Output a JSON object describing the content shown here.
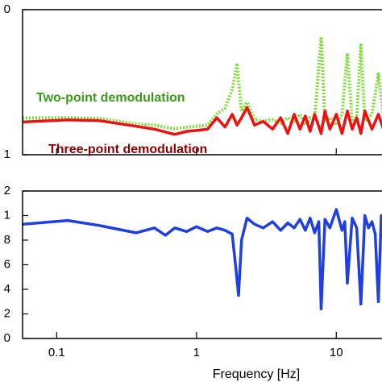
{
  "chart_data": [
    {
      "type": "line",
      "xlog": true,
      "ylog": true,
      "xlim": [
        0.057,
        23
      ],
      "xticks": [
        0.1,
        1,
        10
      ],
      "ylim": [
        1,
        10
      ],
      "yticks": [
        {
          "value": 10,
          "label": "0"
        },
        1
      ],
      "annotations": [
        {
          "text": "Two-point demodulation",
          "color": "#3a9a1a"
        },
        {
          "text": "Three-point demodulation",
          "color": "#8b0000"
        }
      ],
      "x": [
        0.057,
        0.12,
        0.2,
        0.37,
        0.5,
        0.7,
        0.85,
        1,
        1.2,
        1.4,
        1.6,
        1.8,
        1.95,
        2.1,
        2.3,
        2.6,
        3,
        3.5,
        4,
        4.5,
        5,
        5.5,
        6,
        6.5,
        7,
        7.8,
        8.3,
        9,
        10,
        11,
        12,
        13,
        14,
        15,
        16,
        18,
        20,
        22,
        23
      ],
      "series": [
        {
          "color": "#7ddc3a",
          "style": "dotted",
          "values": [
            1.79,
            1.8,
            1.78,
            1.63,
            1.6,
            1.51,
            1.55,
            1.57,
            1.6,
            1.91,
            2.1,
            2.81,
            4.15,
            2.0,
            2.3,
            1.75,
            1.7,
            1.75,
            1.65,
            1.8,
            1.7,
            1.9,
            1.6,
            1.8,
            1.75,
            6.5,
            1.7,
            1.8,
            1.6,
            1.9,
            5.0,
            1.7,
            1.8,
            5.7,
            1.7,
            1.9,
            3.6,
            1.7,
            1.8
          ]
        },
        {
          "color": "#ee1111",
          "style": "solid",
          "values": [
            1.68,
            1.74,
            1.72,
            1.57,
            1.5,
            1.38,
            1.45,
            1.47,
            1.5,
            1.8,
            1.55,
            1.9,
            1.6,
            1.8,
            2.12,
            1.6,
            1.7,
            1.5,
            1.8,
            1.4,
            1.9,
            1.5,
            1.85,
            1.45,
            1.9,
            1.4,
            2.0,
            1.5,
            1.9,
            1.4,
            2.0,
            1.5,
            1.8,
            1.4,
            2.0,
            1.5,
            1.9,
            1.45,
            1.8
          ]
        }
      ]
    },
    {
      "type": "line",
      "xlog": true,
      "xlim": [
        0.057,
        23
      ],
      "xticks": [
        0.1,
        1,
        10
      ],
      "xlabel": "Frequency [Hz]",
      "ylim": [
        0,
        1.2
      ],
      "yticks": [
        {
          "value": 1.2,
          "label": "2"
        },
        1,
        {
          "value": 0.8,
          "label": "8"
        },
        {
          "value": 0.6,
          "label": "6"
        },
        {
          "value": 0.4,
          "label": "4"
        },
        {
          "value": 0.2,
          "label": "2"
        },
        0
      ],
      "x": [
        0.057,
        0.12,
        0.2,
        0.37,
        0.5,
        0.6,
        0.7,
        0.85,
        1,
        1.2,
        1.4,
        1.6,
        1.8,
        1.9,
        2.0,
        2.1,
        2.3,
        2.6,
        3,
        3.5,
        4,
        4.5,
        5,
        5.5,
        6,
        6.5,
        7,
        7.5,
        7.8,
        8.3,
        9,
        10,
        11,
        11.5,
        12,
        13,
        14,
        15,
        16,
        17,
        18,
        19,
        20,
        21,
        22,
        23
      ],
      "series": [
        {
          "color": "#1f3fe0",
          "style": "solid",
          "values": [
            0.93,
            0.96,
            0.92,
            0.86,
            0.9,
            0.84,
            0.9,
            0.87,
            0.91,
            0.87,
            0.9,
            0.88,
            0.85,
            0.6,
            0.35,
            0.8,
            0.98,
            0.93,
            0.9,
            0.95,
            0.88,
            0.94,
            0.9,
            0.97,
            0.88,
            0.98,
            0.86,
            0.95,
            0.24,
            0.97,
            0.9,
            1.05,
            0.88,
            0.95,
            0.45,
            0.98,
            0.9,
            0.28,
            1.0,
            0.9,
            0.95,
            0.85,
            0.3,
            1.0,
            0.9,
            0.95
          ]
        }
      ]
    }
  ]
}
